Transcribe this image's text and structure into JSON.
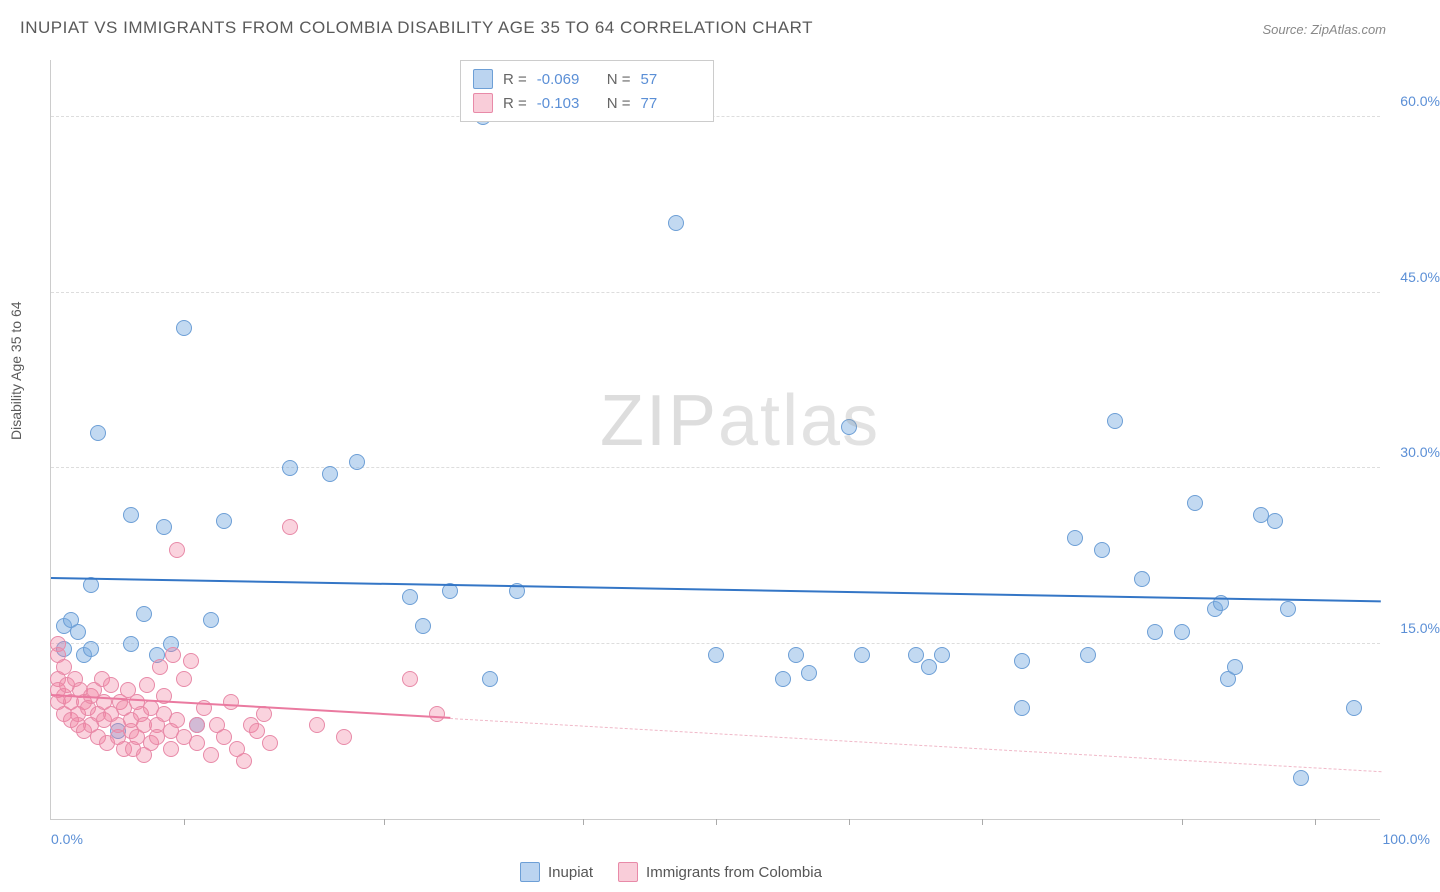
{
  "title": "INUPIAT VS IMMIGRANTS FROM COLOMBIA DISABILITY AGE 35 TO 64 CORRELATION CHART",
  "source": "Source: ZipAtlas.com",
  "y_axis_title": "Disability Age 35 to 64",
  "watermark": "ZIPatlas",
  "chart": {
    "type": "scatter",
    "xlim": [
      0,
      100
    ],
    "ylim": [
      0,
      65
    ],
    "y_ticks": [
      15,
      30,
      45,
      60
    ],
    "y_tick_labels": [
      "15.0%",
      "30.0%",
      "45.0%",
      "60.0%"
    ],
    "x_ticks": [
      10,
      25,
      40,
      50,
      60,
      70,
      85,
      95
    ],
    "x_min_label": "0.0%",
    "x_max_label": "100.0%",
    "background_color": "#ffffff",
    "grid_color": "#dddddd",
    "marker_size": 16,
    "series": [
      {
        "name": "Inupiat",
        "color_fill": "rgba(120,170,225,0.45)",
        "color_stroke": "#6d9fd6",
        "trend_color": "#3476c6",
        "R": "-0.069",
        "N": "57",
        "trend": {
          "y_at_x0": 20.5,
          "y_at_x100": 18.5
        },
        "points": [
          [
            1,
            16.5
          ],
          [
            1.5,
            17
          ],
          [
            1,
            14.5
          ],
          [
            2,
            16
          ],
          [
            2.5,
            14
          ],
          [
            3,
            14.5
          ],
          [
            3,
            20
          ],
          [
            3.5,
            33
          ],
          [
            5,
            7.5
          ],
          [
            6,
            15
          ],
          [
            6,
            26
          ],
          [
            7,
            17.5
          ],
          [
            8,
            14
          ],
          [
            8.5,
            25
          ],
          [
            9,
            15
          ],
          [
            10,
            42
          ],
          [
            11,
            8
          ],
          [
            12,
            17
          ],
          [
            13,
            25.5
          ],
          [
            18,
            30
          ],
          [
            21,
            29.5
          ],
          [
            23,
            30.5
          ],
          [
            27,
            19
          ],
          [
            28,
            16.5
          ],
          [
            30,
            19.5
          ],
          [
            32.5,
            60
          ],
          [
            33,
            12
          ],
          [
            35,
            19.5
          ],
          [
            47,
            51
          ],
          [
            50,
            14
          ],
          [
            55,
            12
          ],
          [
            56,
            14
          ],
          [
            57,
            12.5
          ],
          [
            60,
            33.5
          ],
          [
            61,
            14
          ],
          [
            65,
            14
          ],
          [
            66,
            13
          ],
          [
            67,
            14
          ],
          [
            73,
            13.5
          ],
          [
            73,
            9.5
          ],
          [
            77,
            24
          ],
          [
            78,
            14
          ],
          [
            79,
            23
          ],
          [
            80,
            34
          ],
          [
            82,
            20.5
          ],
          [
            83,
            16
          ],
          [
            85,
            16
          ],
          [
            86,
            27
          ],
          [
            87.5,
            18
          ],
          [
            88,
            18.5
          ],
          [
            88.5,
            12
          ],
          [
            89,
            13
          ],
          [
            91,
            26
          ],
          [
            92,
            25.5
          ],
          [
            93,
            18
          ],
          [
            94,
            3.5
          ],
          [
            98,
            9.5
          ]
        ]
      },
      {
        "name": "Immigrants from Colombia",
        "color_fill": "rgba(240,130,160,0.35)",
        "color_stroke": "#e88aa8",
        "trend_color": "#ea7aa0",
        "R": "-0.103",
        "N": "77",
        "trend": {
          "y_at_x0": 10.5,
          "y_at_x100": 4
        },
        "trend_solid_until_x": 30,
        "points": [
          [
            0.5,
            15
          ],
          [
            0.5,
            14
          ],
          [
            0.5,
            12
          ],
          [
            0.5,
            11
          ],
          [
            0.5,
            10
          ],
          [
            1,
            13
          ],
          [
            1,
            9
          ],
          [
            1,
            10.5
          ],
          [
            1.2,
            11.5
          ],
          [
            1.5,
            8.5
          ],
          [
            1.5,
            10
          ],
          [
            1.8,
            12
          ],
          [
            2,
            9
          ],
          [
            2,
            8
          ],
          [
            2.2,
            11
          ],
          [
            2.5,
            10
          ],
          [
            2.5,
            7.5
          ],
          [
            2.8,
            9.5
          ],
          [
            3,
            10.5
          ],
          [
            3,
            8
          ],
          [
            3.2,
            11
          ],
          [
            3.5,
            9
          ],
          [
            3.5,
            7
          ],
          [
            3.8,
            12
          ],
          [
            4,
            10
          ],
          [
            4,
            8.5
          ],
          [
            4.2,
            6.5
          ],
          [
            4.5,
            11.5
          ],
          [
            4.5,
            9
          ],
          [
            5,
            7
          ],
          [
            5,
            8
          ],
          [
            5.2,
            10
          ],
          [
            5.5,
            6
          ],
          [
            5.5,
            9.5
          ],
          [
            5.8,
            11
          ],
          [
            6,
            7.5
          ],
          [
            6,
            8.5
          ],
          [
            6.2,
            6
          ],
          [
            6.5,
            10
          ],
          [
            6.5,
            7
          ],
          [
            6.8,
            9
          ],
          [
            7,
            8
          ],
          [
            7,
            5.5
          ],
          [
            7.2,
            11.5
          ],
          [
            7.5,
            9.5
          ],
          [
            7.5,
            6.5
          ],
          [
            8,
            8
          ],
          [
            8,
            7
          ],
          [
            8.2,
            13
          ],
          [
            8.5,
            9
          ],
          [
            8.5,
            10.5
          ],
          [
            9,
            7.5
          ],
          [
            9,
            6
          ],
          [
            9.2,
            14
          ],
          [
            9.5,
            8.5
          ],
          [
            9.5,
            23
          ],
          [
            10,
            12
          ],
          [
            10,
            7
          ],
          [
            10.5,
            13.5
          ],
          [
            11,
            8
          ],
          [
            11,
            6.5
          ],
          [
            11.5,
            9.5
          ],
          [
            12,
            5.5
          ],
          [
            12.5,
            8
          ],
          [
            13,
            7
          ],
          [
            13.5,
            10
          ],
          [
            14,
            6
          ],
          [
            14.5,
            5
          ],
          [
            15,
            8
          ],
          [
            15.5,
            7.5
          ],
          [
            16,
            9
          ],
          [
            16.5,
            6.5
          ],
          [
            18,
            25
          ],
          [
            20,
            8
          ],
          [
            22,
            7
          ],
          [
            27,
            12
          ],
          [
            29,
            9
          ]
        ]
      }
    ]
  },
  "legend": {
    "series1_label": "Inupiat",
    "series2_label": "Immigrants from Colombia"
  }
}
